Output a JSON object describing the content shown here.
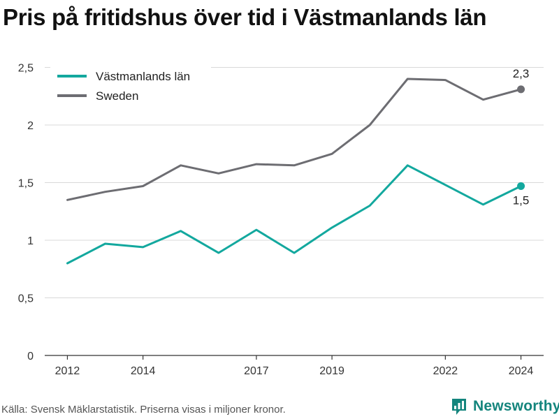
{
  "title": "Pris på fritidshus över tid i Västmanlands län",
  "footer": {
    "source": "Källa: Svensk Mäklarstatistik. Priserna visas i miljoner kronor.",
    "brand": "Newsworthy",
    "brand_icon": "newsworthy-logo-icon"
  },
  "colors": {
    "vastmanland": "#13a89e",
    "sweden": "#6d6d72",
    "grid": "#d9d9d9",
    "axis": "#333333",
    "brand": "#14857d"
  },
  "chart_data": {
    "type": "line",
    "x": [
      2012,
      2013,
      2014,
      2015,
      2016,
      2017,
      2018,
      2019,
      2020,
      2021,
      2022,
      2023,
      2024
    ],
    "x_ticks": [
      2012,
      2014,
      2017,
      2019,
      2022,
      2024
    ],
    "y_ticks": [
      0,
      0.5,
      1,
      1.5,
      2,
      2.5
    ],
    "y_tick_labels": [
      "0",
      "0,5",
      "1",
      "1,5",
      "2",
      "2,5"
    ],
    "ylim": [
      0,
      2.6
    ],
    "xlim": [
      2011.4,
      2024.6
    ],
    "grid": true,
    "legend_position": "top-left",
    "series": [
      {
        "name": "Västmanlands län",
        "color_key": "vastmanland",
        "values": [
          0.8,
          0.97,
          0.94,
          1.08,
          0.89,
          1.09,
          0.89,
          1.11,
          1.3,
          1.65,
          1.48,
          1.31,
          1.47
        ],
        "end_label": "1,5"
      },
      {
        "name": "Sweden",
        "color_key": "sweden",
        "values": [
          1.35,
          1.42,
          1.47,
          1.65,
          1.58,
          1.66,
          1.65,
          1.75,
          2.0,
          2.4,
          2.39,
          2.22,
          2.31
        ],
        "end_label": "2,3"
      }
    ]
  }
}
